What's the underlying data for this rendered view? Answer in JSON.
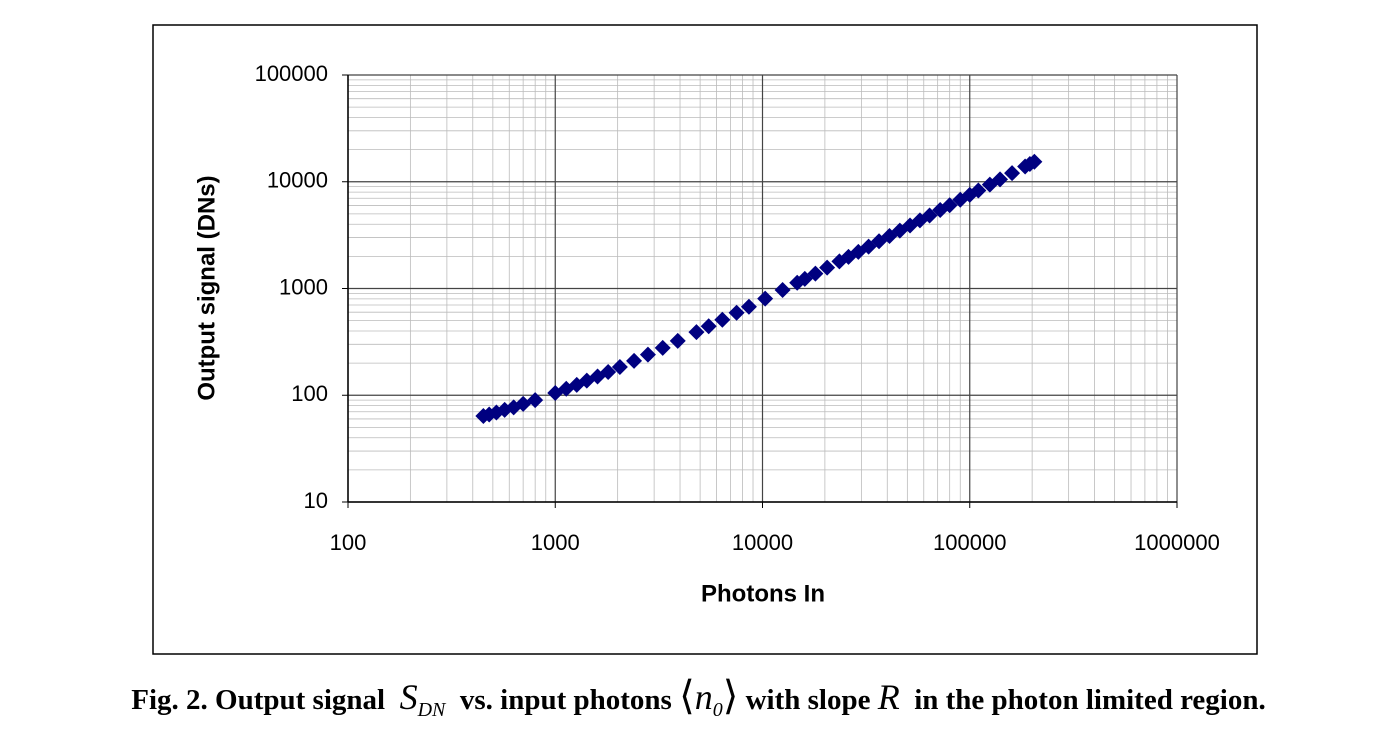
{
  "chart_data": {
    "type": "scatter",
    "xlabel": "Photons In",
    "ylabel": "Output signal (DNs)",
    "x_log": true,
    "y_log": true,
    "grid": true,
    "minor_grid": true,
    "color": "#000080",
    "xlim": [
      100,
      1000000
    ],
    "xticks": [
      100,
      1000,
      10000,
      100000,
      1000000
    ],
    "ylim": [
      10,
      100000
    ],
    "yticks": [
      10,
      100,
      1000,
      10000,
      100000
    ],
    "x": [
      450,
      480,
      520,
      570,
      630,
      700,
      800,
      1000,
      1130,
      1270,
      1420,
      1600,
      1800,
      2050,
      2400,
      2800,
      3300,
      3900,
      4800,
      5500,
      6400,
      7500,
      8600,
      10300,
      12500,
      14700,
      16000,
      18000,
      20500,
      23500,
      26000,
      29000,
      32500,
      36500,
      41000,
      46000,
      51500,
      57500,
      64000,
      72000,
      80000,
      90000,
      100000,
      110000,
      125000,
      140000,
      160000,
      185000,
      195000,
      205000
    ],
    "values": [
      64,
      66,
      69,
      73,
      77,
      83,
      90,
      105,
      115,
      125,
      137,
      150,
      165,
      184,
      210,
      240,
      278,
      323,
      390,
      443,
      510,
      593,
      675,
      803,
      968,
      1133,
      1230,
      1380,
      1568,
      1793,
      1980,
      2205,
      2468,
      2768,
      3105,
      3480,
      3893,
      4343,
      4830,
      5430,
      6030,
      6780,
      7530,
      8280,
      9405,
      10530,
      12030,
      13905,
      14655,
      15405
    ]
  },
  "caption": {
    "lead": "Fig. 2.  Output signal",
    "S": "S",
    "S_sub": "DN",
    "mid": "vs. input photons",
    "lang": "⟨",
    "n": "n",
    "n_sub": "0",
    "rang": "⟩",
    "slope": "with slope",
    "R": "R",
    "tail": "in the photon limited region."
  }
}
